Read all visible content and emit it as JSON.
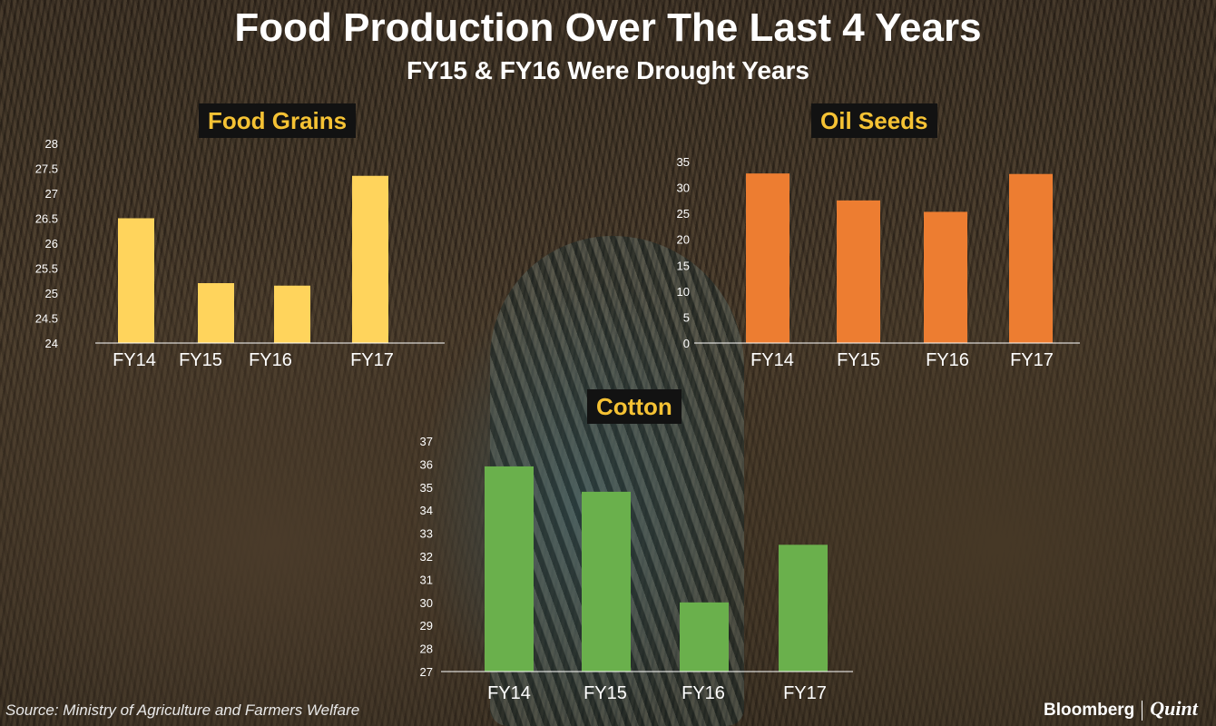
{
  "title": "Food Production Over The Last 4 Years",
  "subtitle": "FY15 & FY16 Were Drought Years",
  "source": "Source: Ministry of Agriculture and Farmers Welfare",
  "logo": {
    "brand": "Bloomberg",
    "partner": "Quint"
  },
  "colors": {
    "food_grains": "#ffd45c",
    "oil_seeds": "#ed7d31",
    "cotton": "#6ab04c",
    "label_text": "#f5c234"
  },
  "chart_data": [
    {
      "id": "food_grains",
      "type": "bar",
      "title": "Food Grains",
      "categories": [
        "FY14",
        "FY15",
        "FY16",
        "FY17"
      ],
      "values": [
        26.5,
        25.2,
        25.15,
        27.35
      ],
      "ylim": [
        24,
        28
      ],
      "yticks": [
        "24",
        "24.5",
        "25",
        "25.5",
        "26",
        "26.5",
        "27",
        "27.5",
        "28"
      ]
    },
    {
      "id": "oil_seeds",
      "type": "bar",
      "title": "Oil Seeds",
      "categories": [
        "FY14",
        "FY15",
        "FY16",
        "FY17"
      ],
      "values": [
        32.7,
        27.5,
        25.3,
        32.6
      ],
      "ylim": [
        0,
        35
      ],
      "yticks": [
        "0",
        "5",
        "10",
        "15",
        "20",
        "25",
        "30",
        "35"
      ]
    },
    {
      "id": "cotton",
      "type": "bar",
      "title": "Cotton",
      "categories": [
        "FY14",
        "FY15",
        "FY16",
        "FY17"
      ],
      "values": [
        35.9,
        34.8,
        30.0,
        32.5
      ],
      "ylim": [
        27,
        37
      ],
      "yticks": [
        "27",
        "28",
        "29",
        "30",
        "31",
        "32",
        "33",
        "34",
        "35",
        "36",
        "37"
      ]
    }
  ]
}
